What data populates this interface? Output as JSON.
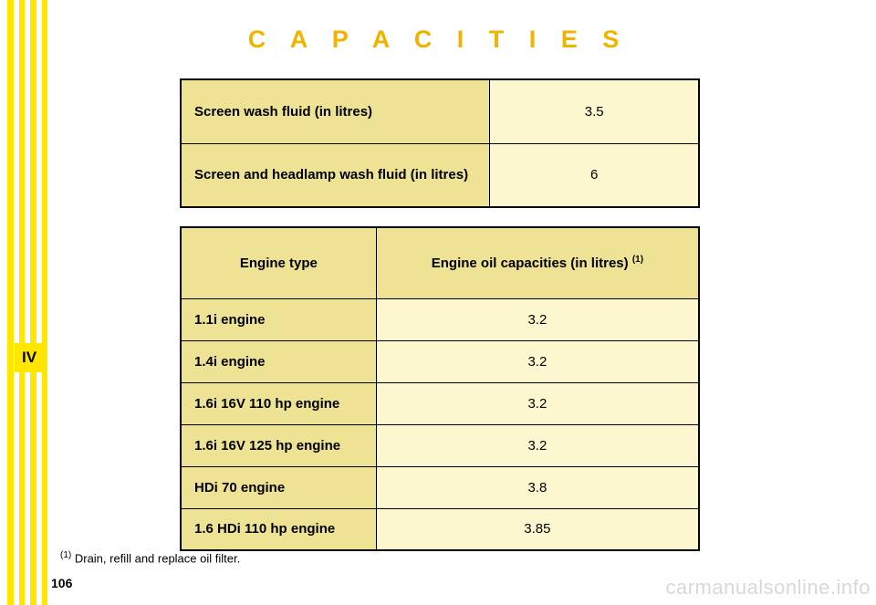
{
  "title": "C A P A C I T I E S",
  "side_tab": "IV",
  "page_number": "106",
  "watermark": "carmanualsonline.info",
  "footnote_marker": "(1)",
  "footnote_text": " Drain, refill and replace oil filter.",
  "fluids": {
    "rows": [
      {
        "label": "Screen wash fluid (in litres)",
        "value": "3.5"
      },
      {
        "label": "Screen and headlamp wash fluid (in litres)",
        "value": "6"
      }
    ]
  },
  "oil": {
    "header_left": "Engine type",
    "header_right_prefix": "Engine oil capacities (in litres) ",
    "header_right_sup": "(1)",
    "rows": [
      {
        "label": "1.1i engine",
        "value": "3.2"
      },
      {
        "label": "1.4i engine",
        "value": "3.2"
      },
      {
        "label": "1.6i 16V 110 hp engine",
        "value": "3.2"
      },
      {
        "label": "1.6i 16V 125 hp engine",
        "value": "3.2"
      },
      {
        "label": "HDi 70 engine",
        "value": "3.8"
      },
      {
        "label": "1.6 HDi 110 hp engine",
        "value": "3.85"
      }
    ]
  }
}
